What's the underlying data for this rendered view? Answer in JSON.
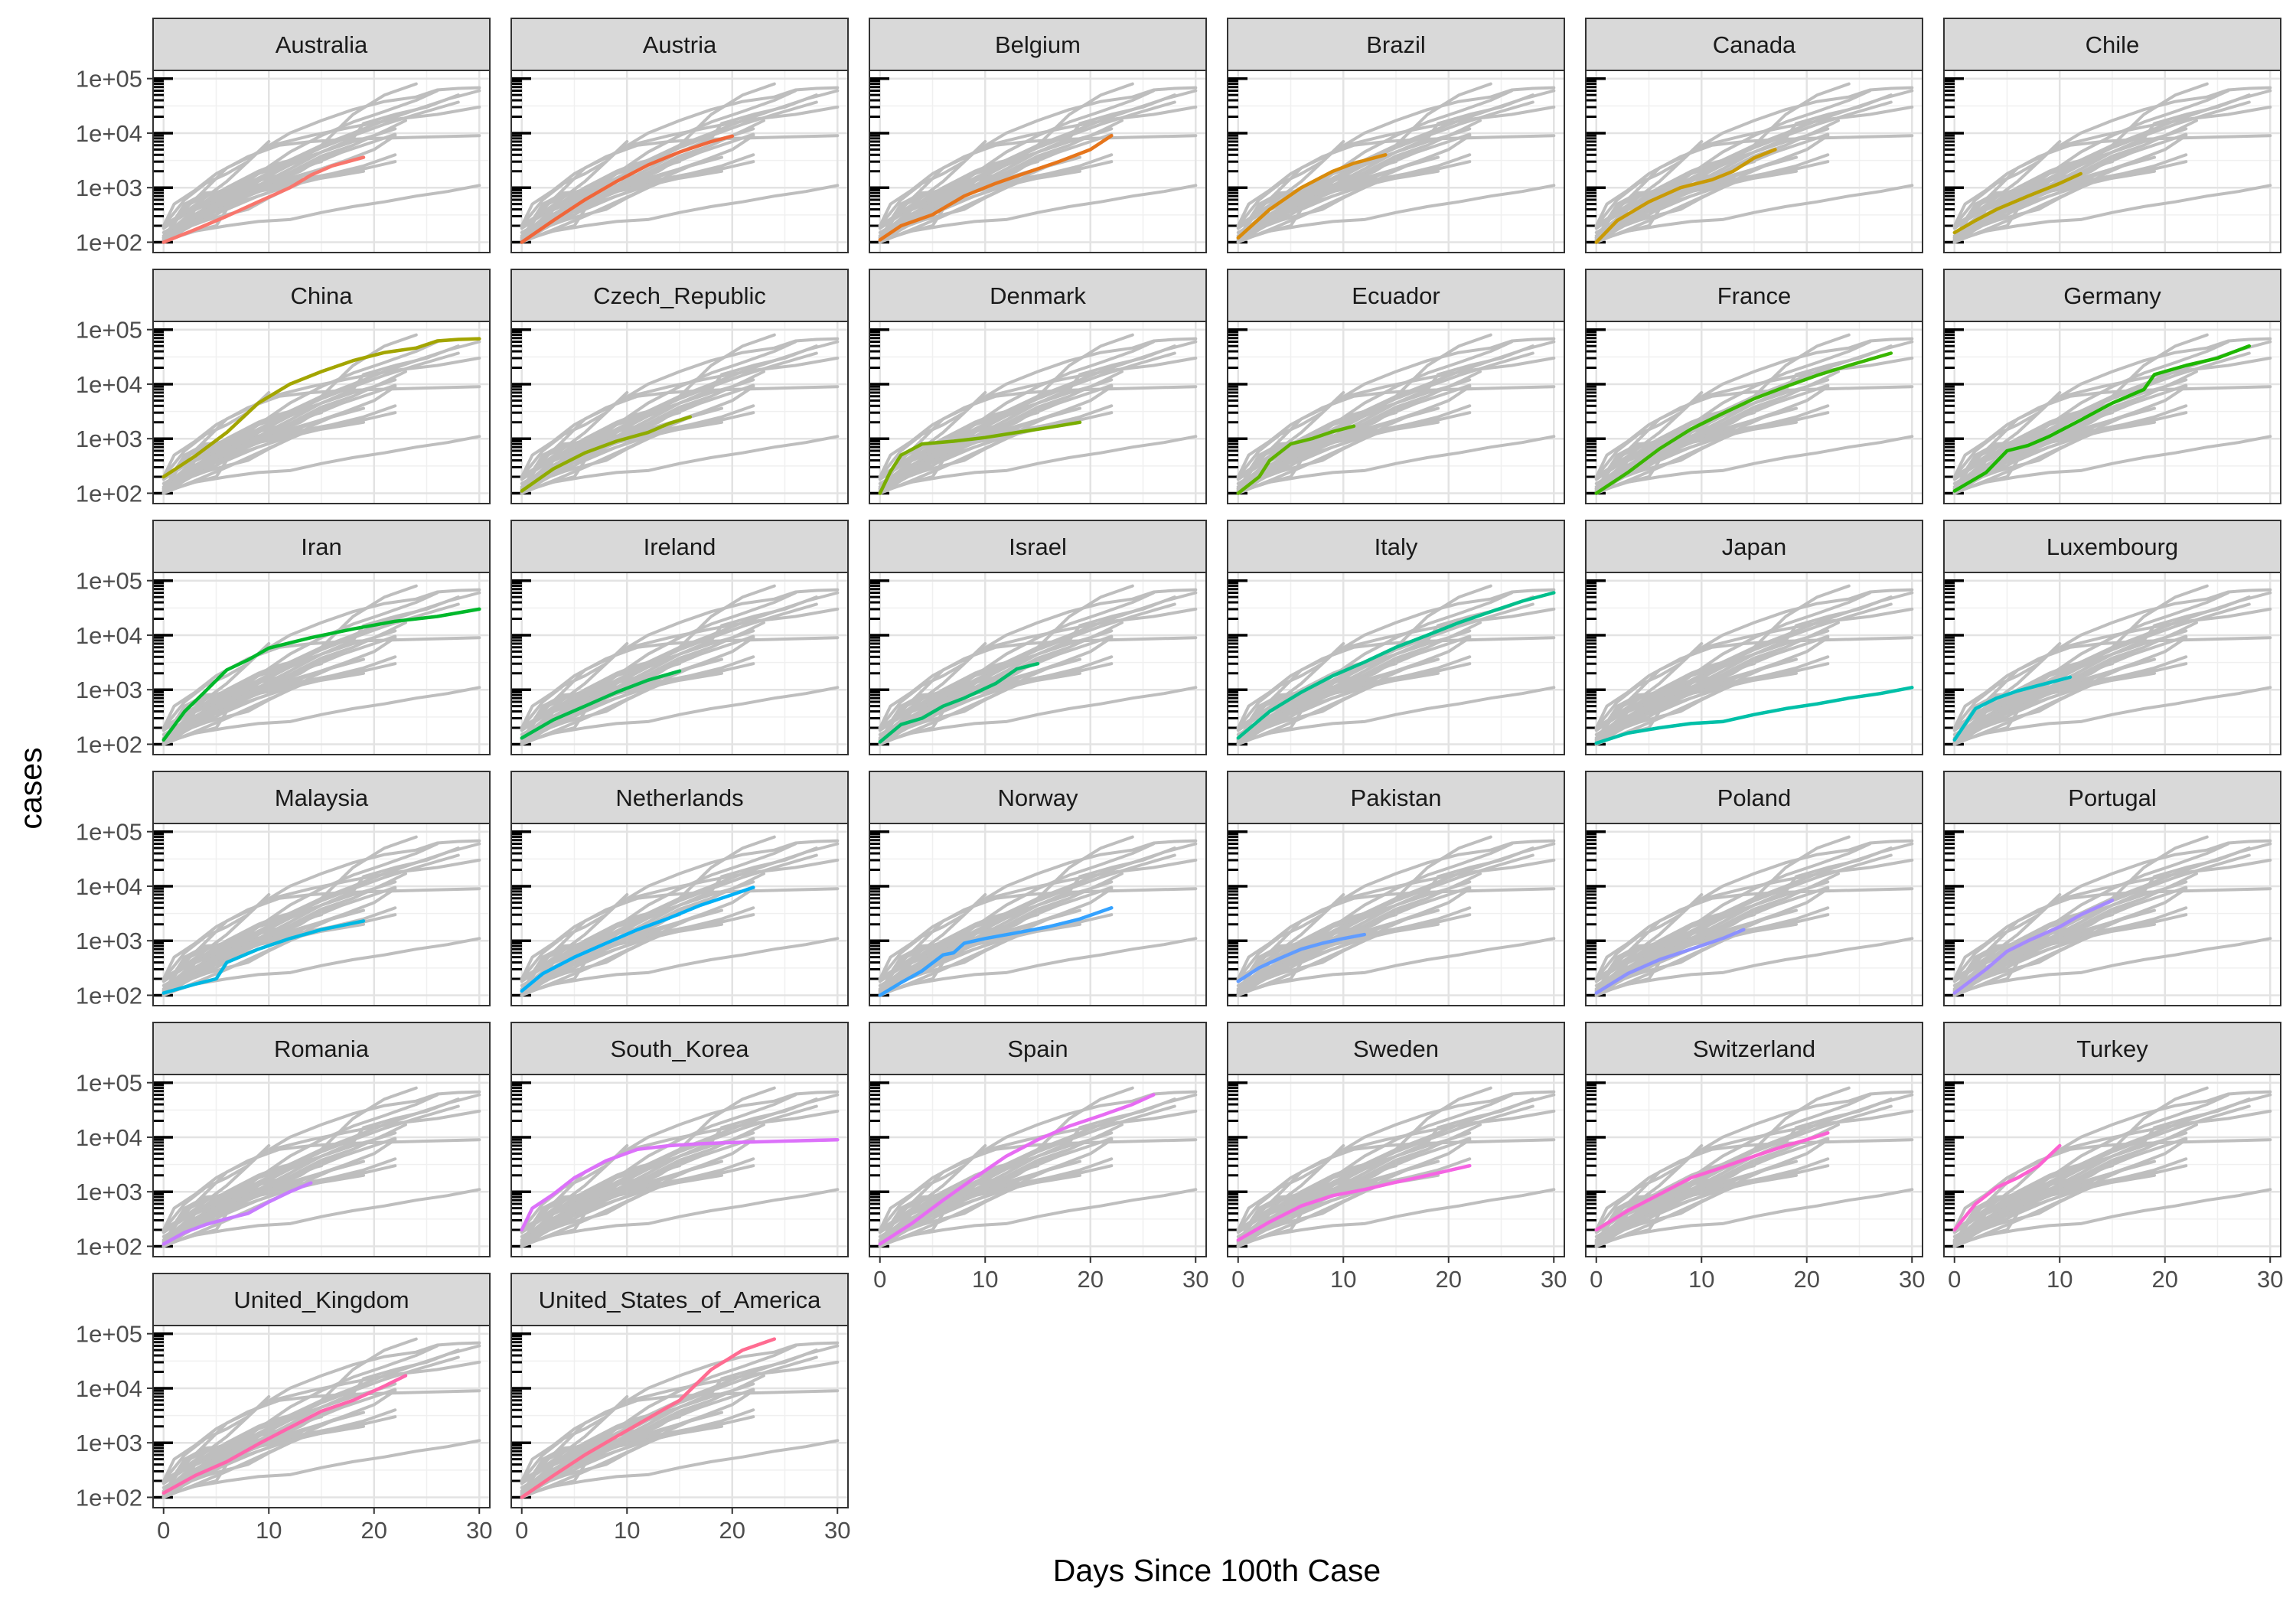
{
  "chart_data": {
    "type": "line",
    "subtype": "small-multiples",
    "title": "",
    "xlabel": "Days Since 100th Case",
    "ylabel": "cases",
    "xlim": [
      -1,
      31
    ],
    "ylim": [
      100,
      100000
    ],
    "y_scale": "log10",
    "x_ticks": [
      0,
      10,
      20,
      30
    ],
    "y_ticks": [
      {
        "value": 100,
        "label": "1e+02"
      },
      {
        "value": 1000,
        "label": "1e+03"
      },
      {
        "value": 10000,
        "label": "1e+04"
      },
      {
        "value": 100000,
        "label": "1e+05"
      }
    ],
    "grid": true,
    "legend": "none",
    "background_series_color": "#bebebe",
    "strip_color": "#d9d9d9",
    "series": [
      {
        "name": "Australia",
        "color": "#f8766d",
        "x": [
          0,
          3,
          6,
          9,
          12,
          14,
          16,
          19
        ],
        "y": [
          100,
          170,
          300,
          550,
          1000,
          1700,
          2500,
          3600
        ]
      },
      {
        "name": "Austria",
        "color": "#f0663a",
        "x": [
          0,
          3,
          6,
          9,
          12,
          15,
          18,
          20
        ],
        "y": [
          100,
          250,
          600,
          1300,
          2600,
          4500,
          7000,
          8800
        ]
      },
      {
        "name": "Belgium",
        "color": "#e6751b",
        "x": [
          0,
          2,
          5,
          8,
          11,
          14,
          17,
          20,
          22
        ],
        "y": [
          110,
          200,
          320,
          700,
          1200,
          1900,
          3000,
          5000,
          9000
        ]
      },
      {
        "name": "Brazil",
        "color": "#d98b0b",
        "x": [
          0,
          3,
          6,
          9,
          11,
          14
        ],
        "y": [
          120,
          400,
          1000,
          2000,
          2800,
          4000
        ]
      },
      {
        "name": "Canada",
        "color": "#c99a06",
        "x": [
          0,
          2,
          5,
          8,
          11,
          13,
          15,
          17
        ],
        "y": [
          100,
          250,
          550,
          1000,
          1400,
          2000,
          3500,
          5000
        ]
      },
      {
        "name": "Chile",
        "color": "#b8a100",
        "x": [
          0,
          2,
          4,
          7,
          10,
          12
        ],
        "y": [
          150,
          250,
          400,
          700,
          1200,
          1800
        ]
      },
      {
        "name": "China",
        "color": "#a3a500",
        "x": [
          0,
          3,
          6,
          9,
          12,
          15,
          18,
          21,
          24,
          26,
          28,
          30
        ],
        "y": [
          200,
          480,
          1300,
          4500,
          10000,
          17000,
          27000,
          38000,
          46000,
          62000,
          66000,
          68000
        ]
      },
      {
        "name": "Czech_Republic",
        "color": "#8fab00",
        "x": [
          0,
          3,
          6,
          9,
          12,
          14,
          16
        ],
        "y": [
          110,
          280,
          550,
          900,
          1300,
          1900,
          2500
        ]
      },
      {
        "name": "Denmark",
        "color": "#79ad00",
        "x": [
          0,
          1,
          2,
          4,
          7,
          10,
          13,
          16,
          19
        ],
        "y": [
          100,
          250,
          500,
          800,
          900,
          1050,
          1300,
          1600,
          2000
        ]
      },
      {
        "name": "Ecuador",
        "color": "#5fb200",
        "x": [
          0,
          2,
          3,
          5,
          7,
          9,
          11
        ],
        "y": [
          100,
          200,
          400,
          800,
          1000,
          1350,
          1700
        ]
      },
      {
        "name": "France",
        "color": "#39b600",
        "x": [
          0,
          3,
          6,
          9,
          12,
          15,
          18,
          21,
          24,
          28
        ],
        "y": [
          100,
          240,
          650,
          1500,
          2900,
          5400,
          9000,
          14500,
          22000,
          37000
        ]
      },
      {
        "name": "Germany",
        "color": "#1db700",
        "x": [
          0,
          3,
          5,
          7,
          9,
          12,
          15,
          18,
          19,
          22,
          25,
          28
        ],
        "y": [
          110,
          240,
          600,
          750,
          1100,
          2200,
          4500,
          8000,
          15000,
          22000,
          30000,
          50000
        ]
      },
      {
        "name": "Iran",
        "color": "#00b82b",
        "x": [
          0,
          2,
          4,
          6,
          8,
          10,
          14,
          18,
          22,
          26,
          30
        ],
        "y": [
          120,
          400,
          950,
          2300,
          3500,
          5800,
          9000,
          13000,
          18000,
          22000,
          30000
        ]
      },
      {
        "name": "Ireland",
        "color": "#00ba4a",
        "x": [
          0,
          3,
          6,
          9,
          12,
          15
        ],
        "y": [
          130,
          280,
          500,
          900,
          1500,
          2200
        ]
      },
      {
        "name": "Israel",
        "color": "#00bc6a",
        "x": [
          0,
          2,
          4,
          6,
          8,
          11,
          13,
          15
        ],
        "y": [
          110,
          230,
          300,
          500,
          700,
          1300,
          2400,
          3000
        ]
      },
      {
        "name": "Italy",
        "color": "#00bf8c",
        "x": [
          0,
          3,
          6,
          9,
          12,
          15,
          18,
          21,
          24,
          27,
          30
        ],
        "y": [
          130,
          400,
          900,
          1800,
          3200,
          6000,
          10000,
          17000,
          27000,
          42000,
          60000
        ]
      },
      {
        "name": "Japan",
        "color": "#00c0a8",
        "x": [
          0,
          3,
          6,
          9,
          12,
          15,
          18,
          21,
          24,
          27,
          30
        ],
        "y": [
          105,
          160,
          200,
          240,
          260,
          350,
          450,
          550,
          700,
          850,
          1100
        ]
      },
      {
        "name": "Luxembourg",
        "color": "#00bfc4",
        "x": [
          0,
          2,
          4,
          6,
          8,
          11
        ],
        "y": [
          120,
          450,
          700,
          950,
          1200,
          1700
        ]
      },
      {
        "name": "Malaysia",
        "color": "#00b8e3",
        "x": [
          0,
          3,
          5,
          6,
          9,
          12,
          15,
          19
        ],
        "y": [
          110,
          160,
          200,
          400,
          700,
          1100,
          1600,
          2300
        ]
      },
      {
        "name": "Netherlands",
        "color": "#00b0f6",
        "x": [
          0,
          2,
          5,
          8,
          11,
          14,
          17,
          20,
          22
        ],
        "y": [
          120,
          250,
          500,
          900,
          1600,
          2600,
          4500,
          7000,
          9500
        ]
      },
      {
        "name": "Norway",
        "color": "#35a2ff",
        "x": [
          0,
          2,
          4,
          6,
          7,
          8,
          10,
          13,
          16,
          19,
          22
        ],
        "y": [
          100,
          170,
          280,
          550,
          600,
          900,
          1100,
          1400,
          1800,
          2500,
          4000
        ]
      },
      {
        "name": "Pakistan",
        "color": "#619cff",
        "x": [
          0,
          2,
          4,
          6,
          8,
          10,
          12
        ],
        "y": [
          180,
          320,
          480,
          700,
          900,
          1100,
          1300
        ]
      },
      {
        "name": "Poland",
        "color": "#8c91ff",
        "x": [
          0,
          3,
          6,
          9,
          12,
          14
        ],
        "y": [
          110,
          250,
          450,
          700,
          1100,
          1600
        ]
      },
      {
        "name": "Portugal",
        "color": "#a58aff",
        "x": [
          0,
          3,
          5,
          7,
          10,
          12,
          15
        ],
        "y": [
          110,
          300,
          640,
          1000,
          1800,
          3000,
          5500
        ]
      },
      {
        "name": "Romania",
        "color": "#c77cff",
        "x": [
          0,
          2,
          4,
          6,
          8,
          10,
          12,
          14
        ],
        "y": [
          110,
          180,
          250,
          320,
          400,
          650,
          1000,
          1450
        ]
      },
      {
        "name": "South_Korea",
        "color": "#dc71fa",
        "x": [
          0,
          1,
          3,
          5,
          8,
          11,
          14,
          17,
          20,
          25,
          30
        ],
        "y": [
          200,
          500,
          900,
          1800,
          3700,
          6000,
          7000,
          7600,
          8000,
          8500,
          9000
        ]
      },
      {
        "name": "Spain",
        "color": "#e76bf3",
        "x": [
          0,
          3,
          6,
          9,
          12,
          15,
          18,
          21,
          24,
          26
        ],
        "y": [
          110,
          260,
          700,
          1800,
          4500,
          9000,
          16000,
          25000,
          40000,
          60000
        ]
      },
      {
        "name": "Sweden",
        "color": "#f564e3",
        "x": [
          0,
          3,
          6,
          9,
          12,
          15,
          18,
          22
        ],
        "y": [
          130,
          280,
          550,
          850,
          1100,
          1500,
          2000,
          3000
        ]
      },
      {
        "name": "Switzerland",
        "color": "#fa62d4",
        "x": [
          0,
          3,
          6,
          9,
          12,
          15,
          18,
          20,
          22
        ],
        "y": [
          200,
          450,
          900,
          1800,
          2800,
          4500,
          7000,
          9000,
          12000
        ]
      },
      {
        "name": "Turkey",
        "color": "#fd61d1",
        "x": [
          0,
          2,
          4,
          6,
          8,
          10
        ],
        "y": [
          200,
          600,
          1200,
          1800,
          3000,
          7000
        ]
      },
      {
        "name": "United_Kingdom",
        "color": "#ff65ad",
        "x": [
          0,
          3,
          6,
          9,
          12,
          15,
          18,
          21,
          23
        ],
        "y": [
          120,
          250,
          450,
          950,
          1900,
          3800,
          6000,
          11000,
          17000
        ]
      },
      {
        "name": "United_States_of_America",
        "color": "#ff6c91",
        "x": [
          0,
          3,
          6,
          9,
          12,
          15,
          18,
          21,
          24
        ],
        "y": [
          100,
          250,
          600,
          1300,
          2800,
          6000,
          22000,
          50000,
          80000
        ]
      }
    ]
  }
}
